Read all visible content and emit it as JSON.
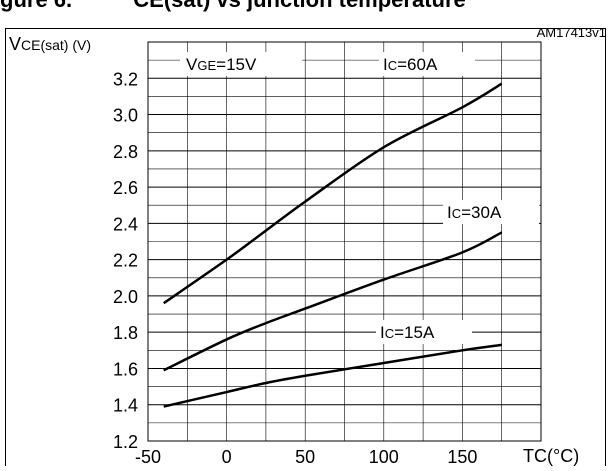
{
  "header": {
    "caption_fragment": "gure 6.          CE(sat) vs junction temperature"
  },
  "figure_code": "AM17413v1",
  "chart_data": {
    "type": "line",
    "title": "",
    "ylabel_main": "V",
    "ylabel_sub": "CE(sat) (V)",
    "xlabel_main": "T",
    "xlabel_sub": "C(°C)",
    "xlim": [
      -50,
      200
    ],
    "ylim": [
      1.2,
      3.4
    ],
    "x_ticks": [
      -50,
      0,
      50,
      100,
      150
    ],
    "y_ticks": [
      1.2,
      1.4,
      1.6,
      1.8,
      2.0,
      2.2,
      2.4,
      2.6,
      2.8,
      3.0,
      3.2
    ],
    "x_tick_labels": [
      "-50",
      "0",
      "50",
      "100",
      "150"
    ],
    "y_tick_labels": [
      "1.2",
      "1.4",
      "1.6",
      "1.8",
      "2.0",
      "2.2",
      "2.4",
      "2.6",
      "2.8",
      "3.0",
      "3.2"
    ],
    "grid": true,
    "annotation": {
      "main": "V",
      "sub": "GE",
      "rest": "=15V"
    },
    "series": [
      {
        "name": "Ic=60A",
        "label_main": "I",
        "label_sub": "C",
        "label_rest": "=60A",
        "x": [
          -40,
          0,
          25,
          50,
          100,
          150,
          175
        ],
        "y": [
          1.96,
          2.2,
          2.36,
          2.52,
          2.82,
          3.04,
          3.17
        ]
      },
      {
        "name": "Ic=30A",
        "label_main": "I",
        "label_sub": "C",
        "label_rest": "=30A",
        "x": [
          -40,
          0,
          25,
          50,
          100,
          150,
          175
        ],
        "y": [
          1.59,
          1.76,
          1.85,
          1.93,
          2.09,
          2.24,
          2.35
        ]
      },
      {
        "name": "Ic=15A",
        "label_main": "I",
        "label_sub": "C",
        "label_rest": "=15A",
        "x": [
          -40,
          0,
          25,
          50,
          100,
          150,
          175
        ],
        "y": [
          1.39,
          1.47,
          1.52,
          1.56,
          1.63,
          1.7,
          1.73
        ]
      }
    ]
  }
}
